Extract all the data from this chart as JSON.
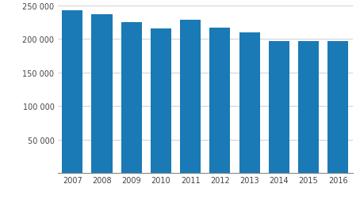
{
  "years": [
    2007,
    2008,
    2009,
    2010,
    2011,
    2012,
    2013,
    2014,
    2015,
    2016
  ],
  "values": [
    243000,
    236000,
    225000,
    215000,
    228000,
    216000,
    210000,
    197000,
    197000,
    197000
  ],
  "bar_color": "#1a7ab5",
  "ylim": [
    0,
    250000
  ],
  "yticks": [
    0,
    50000,
    100000,
    150000,
    200000,
    250000
  ],
  "ytick_labels": [
    "",
    "50 000",
    "100 000",
    "150 000",
    "200 000",
    "250 000"
  ],
  "background_color": "#ffffff",
  "grid_color": "#c8c8c8",
  "bar_width": 0.7,
  "figsize": [
    4.54,
    2.53
  ],
  "dpi": 100
}
